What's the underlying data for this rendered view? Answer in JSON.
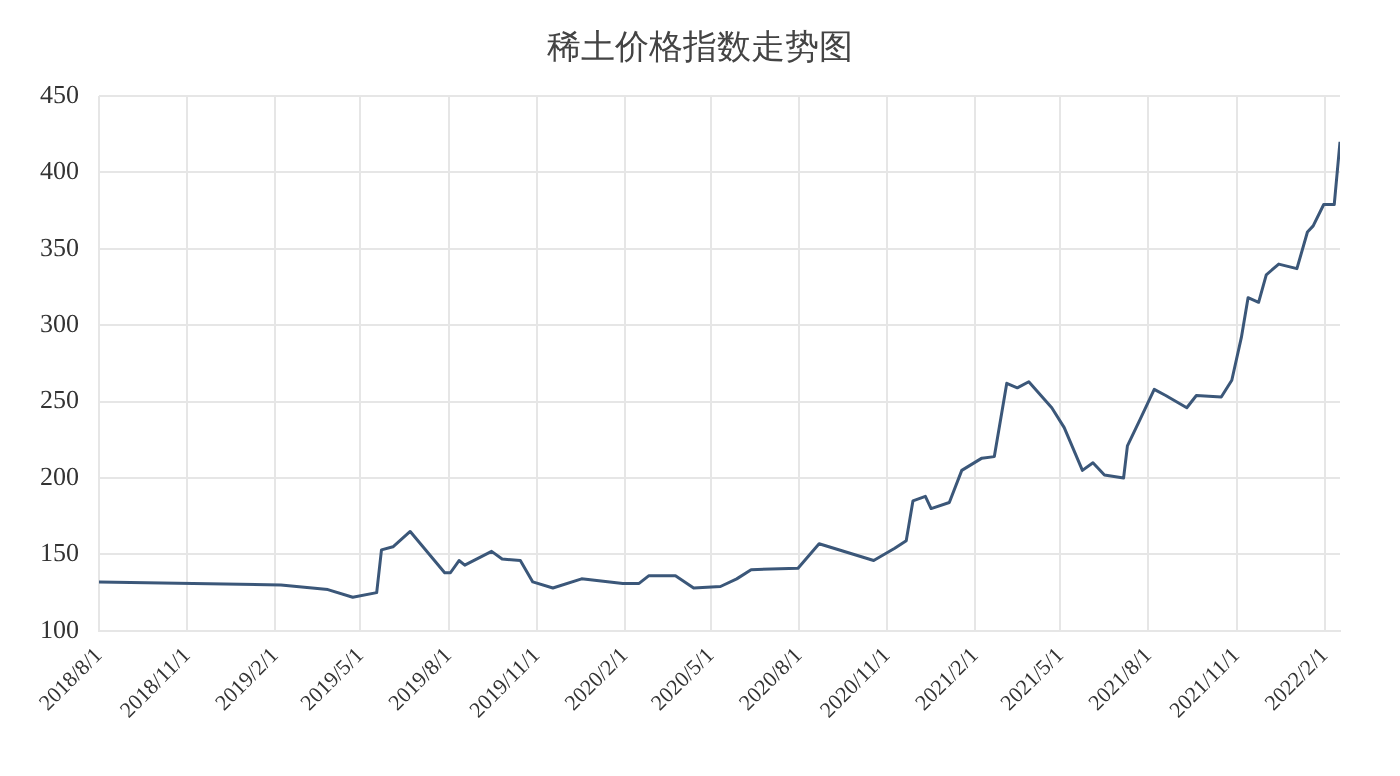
{
  "chart_data": {
    "type": "line",
    "title": "稀土价格指数走势图",
    "color": "#3b5779",
    "grid": true,
    "legend": false,
    "marker": "none",
    "line_style": "solid",
    "x": [
      "2018-08-01",
      "2019-02-07",
      "2019-03-28",
      "2019-04-23",
      "2019-05-18",
      "2019-05-23",
      "2019-06-04",
      "2019-06-22",
      "2019-07-28",
      "2019-08-03",
      "2019-08-12",
      "2019-08-18",
      "2019-09-15",
      "2019-09-26",
      "2019-10-15",
      "2019-10-28",
      "2019-11-18",
      "2019-12-18",
      "2020-01-30",
      "2020-02-16",
      "2020-02-26",
      "2020-03-25",
      "2020-04-13",
      "2020-05-11",
      "2020-05-28",
      "2020-06-12",
      "2020-07-31",
      "2020-08-22",
      "2020-10-18",
      "2020-11-09",
      "2020-11-21",
      "2020-11-28",
      "2020-12-11",
      "2020-12-17",
      "2021-01-05",
      "2021-01-18",
      "2021-02-08",
      "2021-02-21",
      "2021-03-06",
      "2021-03-17",
      "2021-03-29",
      "2021-04-22",
      "2021-05-05",
      "2021-05-24",
      "2021-06-04",
      "2021-06-16",
      "2021-07-06",
      "2021-07-10",
      "2021-07-23",
      "2021-08-07",
      "2021-08-19",
      "2021-09-10",
      "2021-09-20",
      "2021-10-16",
      "2021-10-27",
      "2021-11-06",
      "2021-11-13",
      "2021-11-24",
      "2021-12-02",
      "2021-12-15",
      "2022-01-03",
      "2022-01-14",
      "2022-01-20",
      "2022-01-31",
      "2022-02-11",
      "2022-02-17"
    ],
    "values": [
      132,
      130,
      127,
      122,
      125,
      153,
      155,
      165,
      138,
      138,
      146,
      143,
      152,
      147,
      146,
      132,
      128,
      134,
      131,
      131,
      136,
      136,
      128,
      129,
      134,
      140,
      141,
      157,
      146,
      154,
      159,
      185,
      188,
      180,
      184,
      205,
      213,
      214,
      262,
      259,
      263,
      246,
      233,
      205,
      210,
      202,
      200,
      221,
      238,
      258,
      254,
      246,
      254,
      253,
      264,
      292,
      318,
      315,
      333,
      340,
      337,
      361,
      365,
      379,
      379,
      420
    ],
    "xlim": [
      "2018-08-01",
      "2022-02-17"
    ],
    "xticks": [
      {
        "value": "2018-08-01",
        "label": "2018/8/1"
      },
      {
        "value": "2018-11-01",
        "label": "2018/11/1"
      },
      {
        "value": "2019-02-01",
        "label": "2019/2/1"
      },
      {
        "value": "2019-05-01",
        "label": "2019/5/1"
      },
      {
        "value": "2019-08-01",
        "label": "2019/8/1"
      },
      {
        "value": "2019-11-01",
        "label": "2019/11/1"
      },
      {
        "value": "2020-02-01",
        "label": "2020/2/1"
      },
      {
        "value": "2020-05-01",
        "label": "2020/5/1"
      },
      {
        "value": "2020-08-01",
        "label": "2020/8/1"
      },
      {
        "value": "2020-11-01",
        "label": "2020/11/1"
      },
      {
        "value": "2021-02-01",
        "label": "2021/2/1"
      },
      {
        "value": "2021-05-01",
        "label": "2021/5/1"
      },
      {
        "value": "2021-08-01",
        "label": "2021/8/1"
      },
      {
        "value": "2021-11-01",
        "label": "2021/11/1"
      },
      {
        "value": "2022-02-01",
        "label": "2022/2/1"
      }
    ],
    "ylim": [
      100,
      450
    ],
    "yticks": [
      100,
      150,
      200,
      250,
      300,
      350,
      400,
      450
    ]
  }
}
